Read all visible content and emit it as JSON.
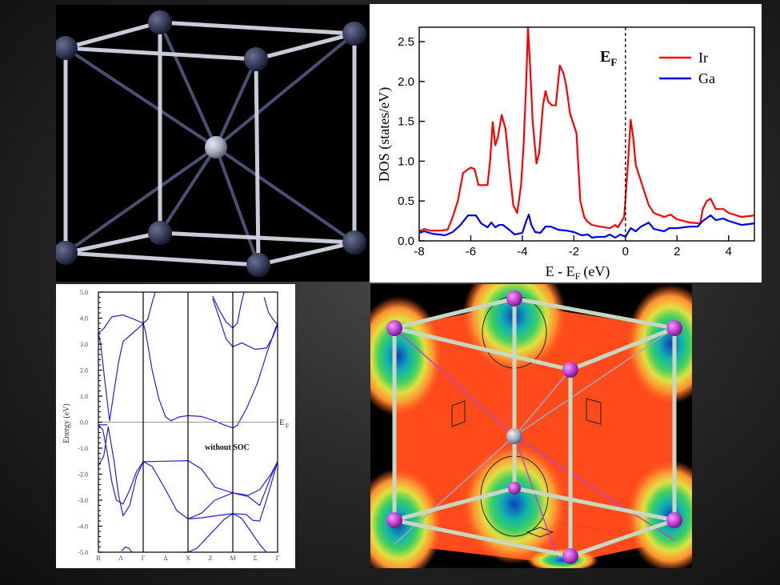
{
  "colors": {
    "ir": "#ff0000",
    "ga": "#0000ee",
    "band": "#2020e0",
    "atom_dark": "#3a4060",
    "atom_center": "#a8acbc",
    "atom_purple": "#c040d0",
    "bond": "#c8ccd8"
  },
  "crystal": {
    "icon": "crystal-structure-icon"
  },
  "fermi": {
    "icon": "fermi-surface-icon"
  },
  "chart_data": [
    {
      "type": "line",
      "title": "",
      "xlabel_main": "E - E",
      "xlabel_sub": "F",
      "xlabel_unit": "(eV)",
      "ylabel": "DOS (states/eV)",
      "xlim": [
        -8,
        5
      ],
      "ylim": [
        0,
        2.7
      ],
      "xticks": [
        "-8",
        "-6",
        "-4",
        "-2",
        "0",
        "2",
        "4"
      ],
      "xtick_values": [
        -8,
        -6,
        -4,
        -2,
        0,
        2,
        4
      ],
      "yticks": [
        "0.0",
        "0.5",
        "1.0",
        "1.5",
        "2.0",
        "2.5"
      ],
      "ytick_values": [
        0,
        0.5,
        1.0,
        1.5,
        2.0,
        2.5
      ],
      "fermi_label_main": "E",
      "fermi_label_sub": "F",
      "legend_position": "top-right",
      "series": [
        {
          "name": "Ir",
          "x": [
            -8,
            -7.8,
            -7.6,
            -7.2,
            -6.9,
            -6.7,
            -6.5,
            -6.3,
            -6.1,
            -6.0,
            -5.85,
            -5.7,
            -5.55,
            -5.35,
            -5.25,
            -5.15,
            -5.05,
            -4.95,
            -4.8,
            -4.65,
            -4.5,
            -4.35,
            -4.2,
            -4.05,
            -3.95,
            -3.85,
            -3.78,
            -3.7,
            -3.6,
            -3.45,
            -3.35,
            -3.2,
            -3.1,
            -3.0,
            -2.85,
            -2.7,
            -2.55,
            -2.4,
            -2.3,
            -2.15,
            -2.0,
            -1.9,
            -1.75,
            -1.6,
            -1.5,
            -1.3,
            -1.0,
            -0.6,
            -0.4,
            -0.3,
            -0.2,
            -0.05,
            0.1,
            0.2,
            0.3,
            0.4,
            0.5,
            0.7,
            0.9,
            1.1,
            1.5,
            1.75,
            2.0,
            2.5,
            2.9,
            3.0,
            3.15,
            3.3,
            3.5,
            3.8,
            4.0,
            4.5,
            5.0
          ],
          "y": [
            0.12,
            0.15,
            0.13,
            0.13,
            0.14,
            0.3,
            0.5,
            0.85,
            0.9,
            0.92,
            0.9,
            0.7,
            0.7,
            0.7,
            1.0,
            1.49,
            1.2,
            1.3,
            1.58,
            1.4,
            0.9,
            0.45,
            0.35,
            0.7,
            1.2,
            2.0,
            2.68,
            2.2,
            1.5,
            0.97,
            1.1,
            1.7,
            1.88,
            1.75,
            1.7,
            1.7,
            2.2,
            2.1,
            1.95,
            1.6,
            1.45,
            1.35,
            0.5,
            0.3,
            0.25,
            0.2,
            0.18,
            0.16,
            0.2,
            0.17,
            0.22,
            0.3,
            1.0,
            1.52,
            1.3,
            0.95,
            0.85,
            0.65,
            0.45,
            0.35,
            0.3,
            0.33,
            0.27,
            0.23,
            0.22,
            0.4,
            0.5,
            0.53,
            0.4,
            0.4,
            0.35,
            0.3,
            0.32
          ]
        },
        {
          "name": "Ga",
          "x": [
            -8,
            -7.8,
            -7.5,
            -7.0,
            -6.7,
            -6.4,
            -6.1,
            -5.8,
            -5.6,
            -5.35,
            -5.2,
            -5.05,
            -4.9,
            -4.75,
            -4.55,
            -4.3,
            -4.0,
            -3.85,
            -3.75,
            -3.65,
            -3.5,
            -3.3,
            -3.1,
            -2.9,
            -2.6,
            -2.3,
            -2.0,
            -1.7,
            -1.45,
            -1.3,
            -1.1,
            -0.8,
            -0.6,
            -0.4,
            -0.2,
            0.0,
            0.2,
            0.4,
            0.6,
            0.9,
            1.1,
            1.5,
            1.7,
            2.0,
            2.5,
            2.8,
            3.0,
            3.3,
            3.5,
            3.8,
            4.0,
            4.5,
            5.0
          ],
          "y": [
            0.1,
            0.12,
            0.09,
            0.07,
            0.11,
            0.2,
            0.32,
            0.32,
            0.22,
            0.17,
            0.23,
            0.17,
            0.2,
            0.2,
            0.15,
            0.08,
            0.1,
            0.25,
            0.33,
            0.2,
            0.11,
            0.1,
            0.18,
            0.18,
            0.14,
            0.13,
            0.11,
            0.07,
            0.08,
            0.04,
            0.05,
            0.05,
            0.08,
            0.04,
            0.08,
            0.05,
            0.16,
            0.12,
            0.18,
            0.23,
            0.15,
            0.12,
            0.16,
            0.16,
            0.18,
            0.18,
            0.25,
            0.32,
            0.26,
            0.28,
            0.25,
            0.2,
            0.22
          ]
        }
      ]
    },
    {
      "type": "line",
      "title": "",
      "ylabel": "Energy (eV)",
      "ylim": [
        -5.0,
        5.0
      ],
      "yticks": [
        "5.0",
        "4.0",
        "3.0",
        "2.0",
        "1.0",
        "0.0",
        "-1.0",
        "-2.0",
        "-3.0",
        "-4.0",
        "-5.0"
      ],
      "ytick_values": [
        5,
        4,
        3,
        2,
        1,
        0,
        -1,
        -2,
        -3,
        -4,
        -5
      ],
      "kpoints": [
        "R",
        "Λ",
        "Γ",
        "Δ",
        "X",
        "Z",
        "M",
        "Σ",
        "Γ"
      ],
      "kpoint_positions": [
        0,
        0.5,
        1,
        1.5,
        2,
        2.5,
        3,
        3.5,
        4
      ],
      "xlim": [
        0,
        4.0
      ],
      "fermi_label_main": "E",
      "fermi_label_sub": "F",
      "annotation": "without SOC",
      "bands": [
        {
          "x": [
            0,
            0.12,
            0.3,
            0.55,
            0.8,
            1.0
          ],
          "y": [
            3.42,
            3.6,
            4.05,
            4.12,
            3.95,
            3.8
          ]
        },
        {
          "x": [
            0,
            0.05,
            0.15,
            0.25,
            0.35,
            0.45,
            0.55,
            0.75,
            0.95,
            1.0
          ],
          "y": [
            3.42,
            3.0,
            1.5,
            0.05,
            1.2,
            2.3,
            3.1,
            3.4,
            3.7,
            3.8
          ]
        },
        {
          "x": [
            1.0,
            1.05,
            1.2,
            1.35,
            1.5,
            1.62,
            1.8,
            2.0,
            2.3,
            2.6,
            2.8,
            3.0,
            3.1,
            3.3,
            3.55,
            3.75,
            3.95,
            4.0
          ],
          "y": [
            3.8,
            3.5,
            2.0,
            0.9,
            0.2,
            0.05,
            0.2,
            0.25,
            0.22,
            0.05,
            -0.1,
            -0.22,
            -0.12,
            0.5,
            1.5,
            2.6,
            3.6,
            3.8
          ]
        },
        {
          "x": [
            1.0,
            1.1,
            1.2,
            1.27
          ],
          "y": [
            3.8,
            3.95,
            4.6,
            5.0
          ]
        },
        {
          "x": [
            2.55,
            2.7,
            2.85,
            3.0,
            3.1,
            3.18,
            3.25
          ],
          "y": [
            4.85,
            4.3,
            3.85,
            3.62,
            3.8,
            4.5,
            5.0
          ]
        },
        {
          "x": [
            2.55,
            2.7,
            2.85,
            3.0,
            3.2,
            3.5,
            3.75,
            3.9,
            4.0
          ],
          "y": [
            4.75,
            4.0,
            3.2,
            2.9,
            3.05,
            2.8,
            2.85,
            3.3,
            3.75
          ]
        },
        {
          "x": [
            3.7,
            3.8,
            3.9,
            4.0
          ],
          "y": [
            4.8,
            4.2,
            3.95,
            3.75
          ]
        },
        {
          "x": [
            0,
            0.1,
            0.2,
            0.3,
            0.4,
            0.55,
            0.7,
            0.85,
            1.0
          ],
          "y": [
            -0.1,
            -0.3,
            -1.2,
            -2.3,
            -3.0,
            -3.15,
            -2.6,
            -1.9,
            -1.52
          ]
        },
        {
          "x": [
            0,
            0.12,
            0.22,
            0.35,
            0.45,
            0.55,
            0.7,
            0.85,
            1.0
          ],
          "y": [
            -1.68,
            -1.3,
            -0.18,
            -1.5,
            -2.8,
            -3.6,
            -3.2,
            -2.1,
            -1.52
          ]
        },
        {
          "x": [
            0,
            0.2
          ],
          "y": [
            -0.1,
            -0.1
          ]
        },
        {
          "x": [
            1.0,
            1.5,
            2.0,
            2.3,
            2.6,
            3.0,
            3.3,
            3.6,
            3.85,
            4.0
          ],
          "y": [
            -1.52,
            -1.5,
            -1.48,
            -1.8,
            -2.5,
            -2.72,
            -2.85,
            -2.6,
            -2.0,
            -1.52
          ]
        },
        {
          "x": [
            1.0,
            1.2,
            1.5,
            1.75,
            2.0,
            2.3,
            2.6,
            3.0,
            3.3,
            3.6,
            3.85,
            4.0
          ],
          "y": [
            -1.52,
            -1.7,
            -2.6,
            -3.4,
            -3.72,
            -3.5,
            -3.0,
            -2.72,
            -2.8,
            -3.2,
            -2.1,
            -1.52
          ]
        },
        {
          "x": [
            2.0,
            2.3,
            2.7,
            3.0,
            3.3,
            3.45,
            3.6,
            3.75,
            4.0
          ],
          "y": [
            -3.72,
            -3.68,
            -3.58,
            -3.52,
            -3.55,
            -3.78,
            -3.8,
            -3.0,
            -1.52
          ]
        },
        {
          "x": [
            2.0,
            2.2,
            2.5,
            2.8,
            3.0,
            3.2,
            3.4,
            3.6,
            3.75
          ],
          "y": [
            -5.0,
            -4.85,
            -4.3,
            -3.75,
            -3.52,
            -3.7,
            -4.2,
            -4.7,
            -5.0
          ]
        },
        {
          "x": [
            1.9,
            2.0
          ],
          "y": [
            -5.0,
            -5.0
          ]
        },
        {
          "x": [
            0.52,
            0.6,
            0.68,
            0.75
          ],
          "y": [
            -4.95,
            -4.8,
            -4.85,
            -5.0
          ]
        }
      ]
    }
  ]
}
